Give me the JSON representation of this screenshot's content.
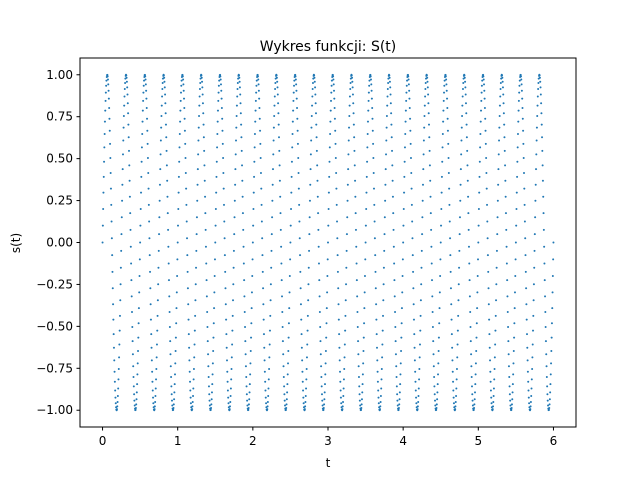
{
  "chart_data": {
    "type": "scatter",
    "title": "Wykres funkcji: S(t)",
    "xlabel": "t",
    "ylabel": "s(t)",
    "xlim": [
      -0.3,
      6.3
    ],
    "ylim": [
      -1.1,
      1.1
    ],
    "xticks": [
      0,
      1,
      2,
      3,
      4,
      5,
      6
    ],
    "yticks": [
      -1.0,
      -0.75,
      -0.5,
      -0.25,
      0.0,
      0.25,
      0.5,
      0.75,
      1.0
    ],
    "xtick_labels": [
      "0",
      "1",
      "2",
      "3",
      "4",
      "5",
      "6"
    ],
    "ytick_labels": [
      "−1.00",
      "−0.75",
      "−0.50",
      "−0.25",
      "0.00",
      "0.25",
      "0.50",
      "0.75",
      "1.00"
    ],
    "grid": false,
    "series": [
      {
        "function": "sin(2*pi*4*t)",
        "frequency_hz": 4,
        "amplitude": 1,
        "t_start": 0,
        "t_end": 6,
        "color": "#1f77b4",
        "marker": "point"
      }
    ]
  }
}
